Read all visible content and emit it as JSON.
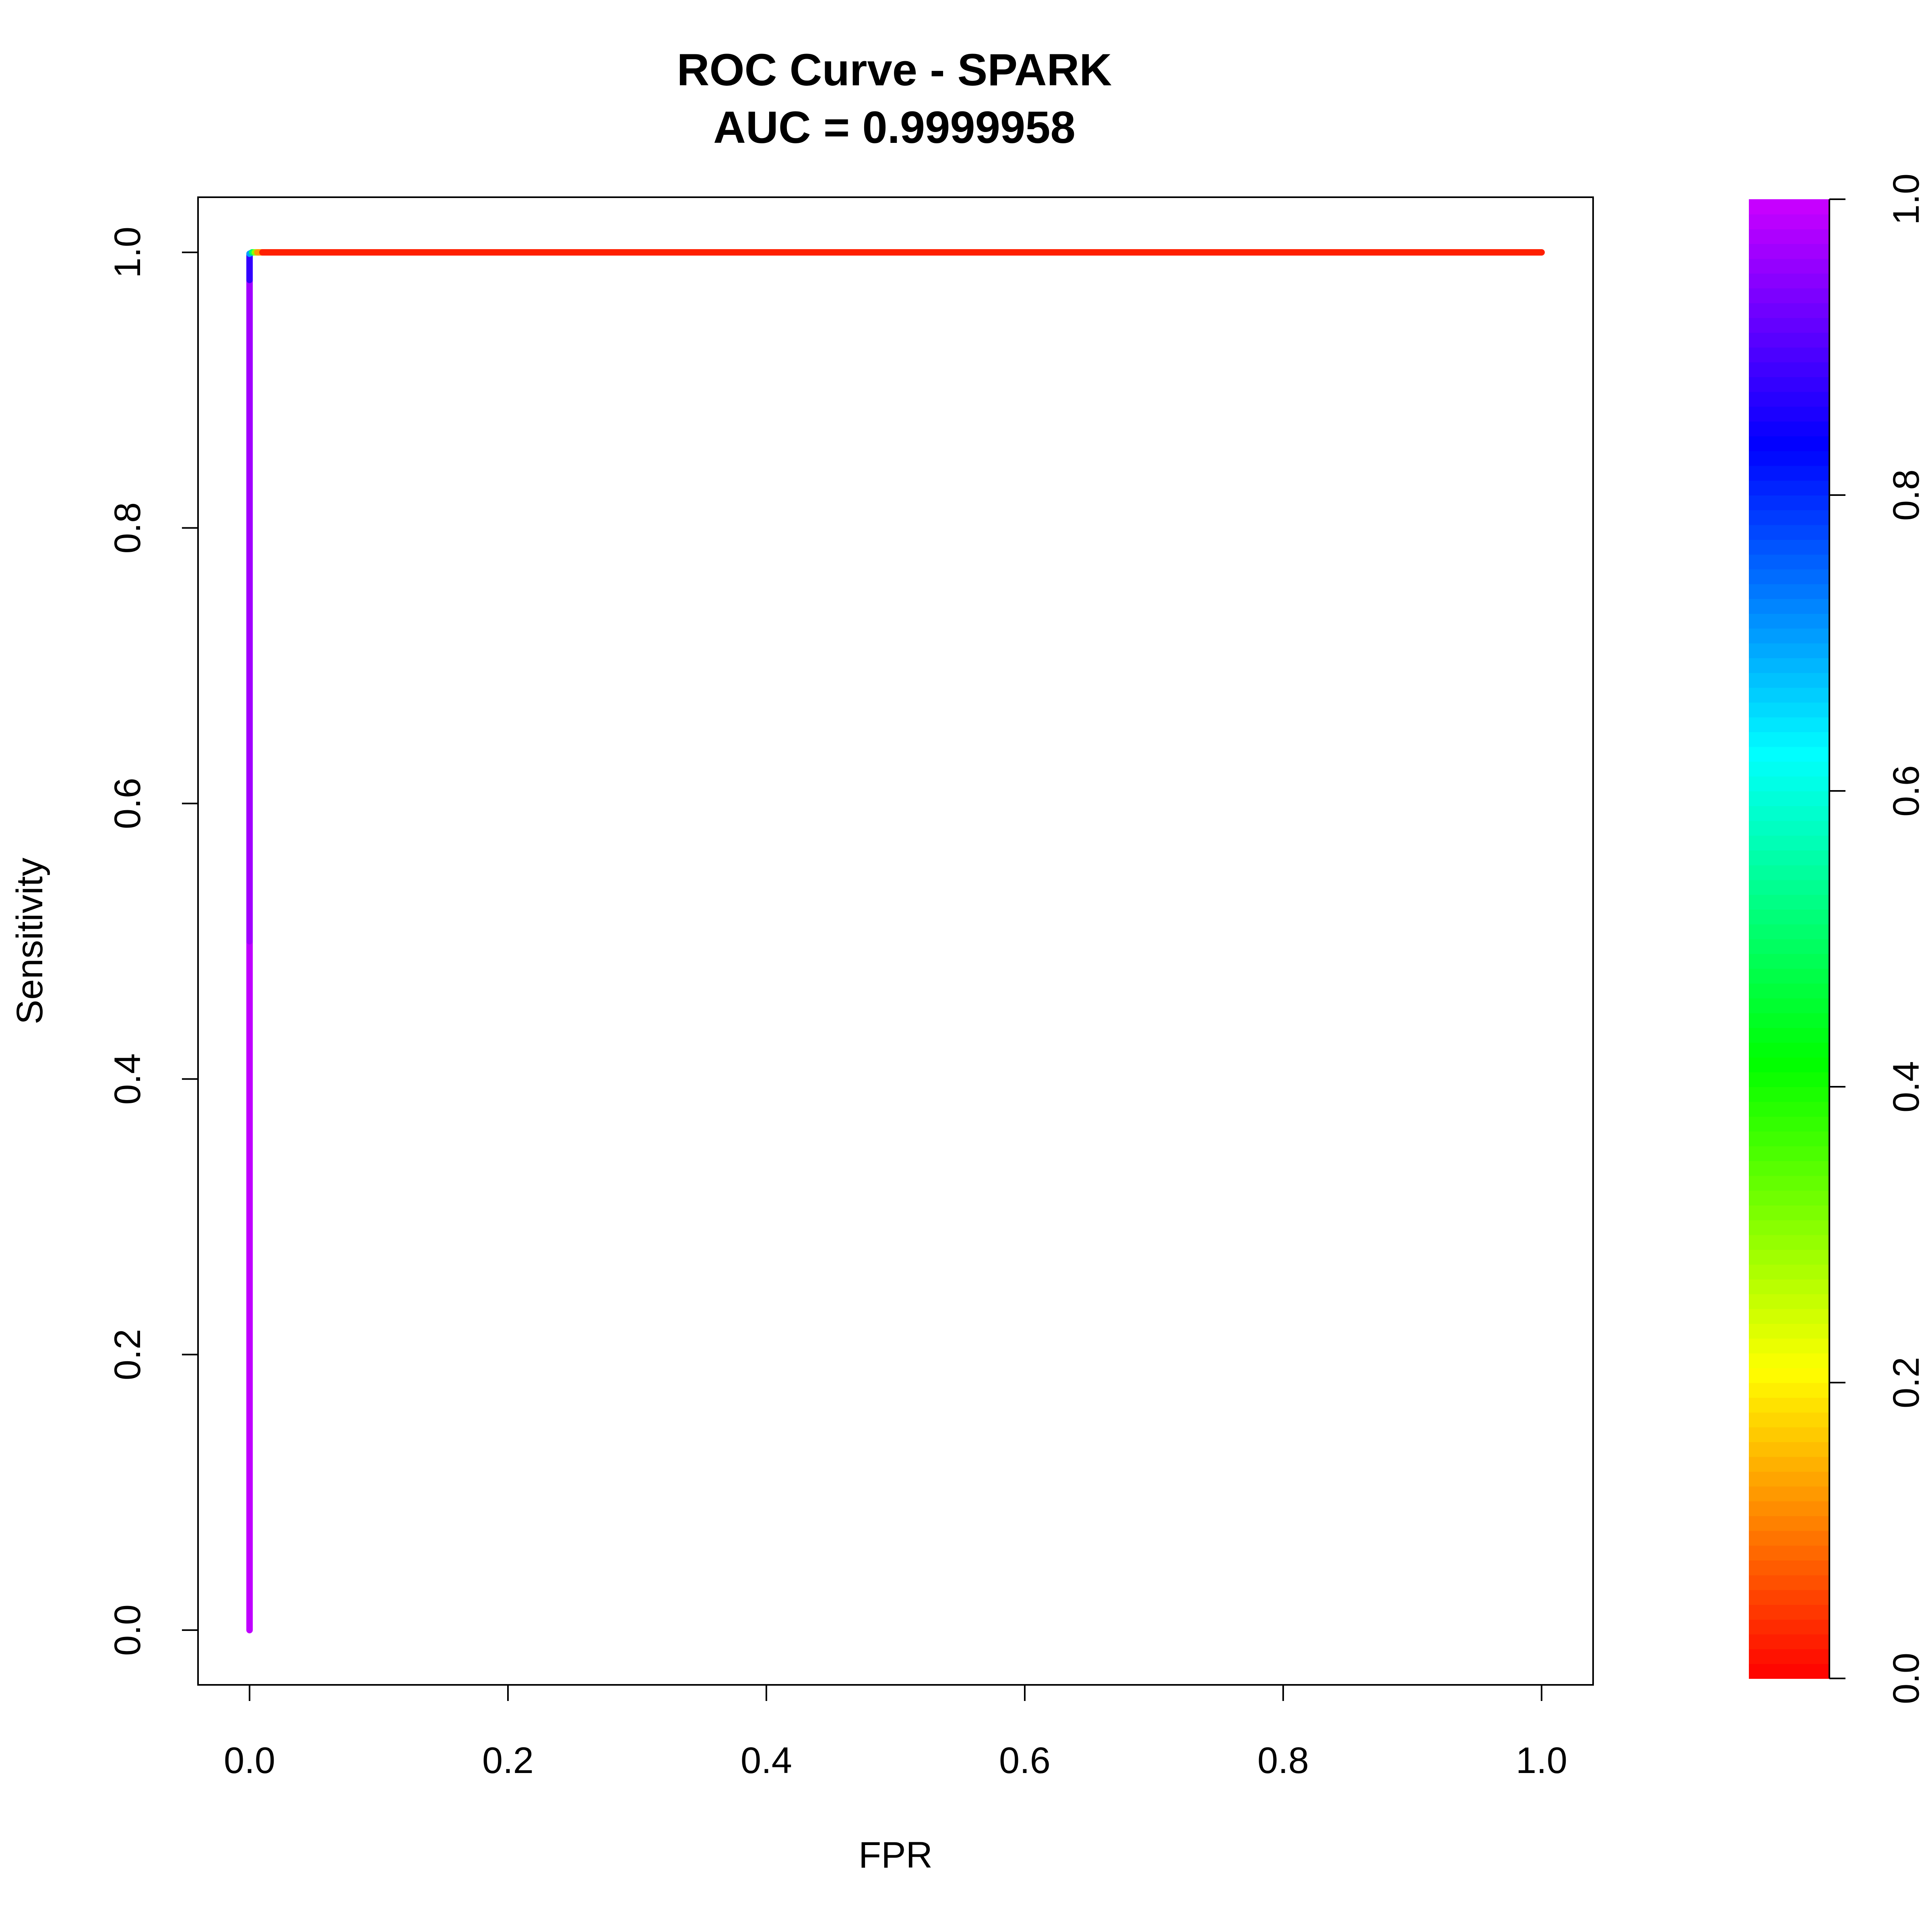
{
  "chart_data": {
    "type": "line",
    "title": "ROC Curve - SPARK",
    "subtitle": "AUC = 0.9999958",
    "xlabel": "FPR",
    "ylabel": "Sensitivity",
    "xlim": [
      0,
      1
    ],
    "ylim": [
      0,
      1
    ],
    "x_ticks": [
      "0.0",
      "0.2",
      "0.4",
      "0.6",
      "0.8",
      "1.0"
    ],
    "y_ticks": [
      "0.0",
      "0.2",
      "0.4",
      "0.6",
      "0.8",
      "1.0"
    ],
    "grid": false,
    "colorbar": {
      "range": [
        0,
        1
      ],
      "ticks": [
        "0.0",
        "0.2",
        "0.4",
        "0.6",
        "0.8",
        "1.0"
      ],
      "palette": "rainbow (red to magenta)",
      "low_color": "#ff0000",
      "high_color": "#cc00ff"
    },
    "series": [
      {
        "points": [
          {
            "x": 0.0,
            "y": 0.0,
            "cutoff": 1.0
          },
          {
            "x": 0.0,
            "y": 0.5,
            "cutoff": 0.98
          },
          {
            "x": 0.0,
            "y": 0.98,
            "cutoff": 0.95
          },
          {
            "x": 0.0,
            "y": 0.999,
            "cutoff": 0.8
          },
          {
            "x": 0.002,
            "y": 1.0,
            "cutoff": 0.6
          },
          {
            "x": 0.004,
            "y": 1.0,
            "cutoff": 0.4
          },
          {
            "x": 0.006,
            "y": 1.0,
            "cutoff": 0.2
          },
          {
            "x": 0.01,
            "y": 1.0,
            "cutoff": 0.05
          },
          {
            "x": 1.0,
            "y": 1.0,
            "cutoff": 0.0
          }
        ]
      }
    ]
  }
}
